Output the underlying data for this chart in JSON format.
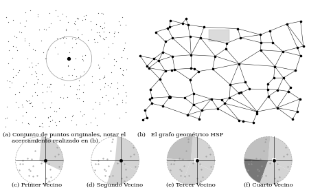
{
  "white": "#ffffff",
  "black": "#000000",
  "caption_a": "(a) Conjunto de puntos originales, notar el\n     acercamiento realizado en (b).",
  "caption_b": "(b)   El grafo geométrico HSP",
  "caption_c": "(c) Primer Vecino",
  "caption_d": "(d) Segundo Vecino",
  "caption_e": "(e) Tercer Vecino",
  "caption_f": "(f) Cuarto Vecino",
  "font_size_caption": 6.0,
  "light_gray1": "#d8d8d8",
  "light_gray2": "#c8c8c8",
  "medium_gray": "#a8a8a8",
  "dark_gray": "#888888"
}
